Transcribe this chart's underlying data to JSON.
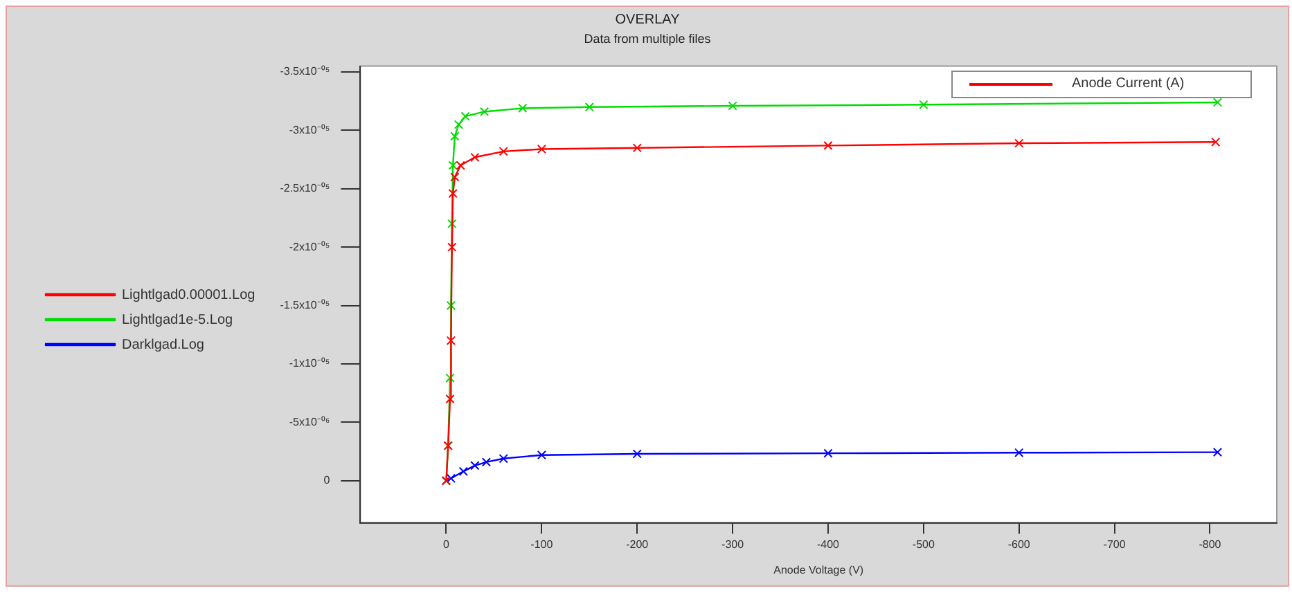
{
  "chart_data": {
    "type": "line",
    "title": "OVERLAY",
    "subtitle": "Data from multiple files",
    "xlabel": "Anode Voltage (V)",
    "ylabel": "Anode Current (A)",
    "xlim": [
      90,
      -870
    ],
    "xticks": [
      0,
      -100,
      -200,
      -300,
      -400,
      -500,
      -600,
      -700,
      -800
    ],
    "ylim": [
      3.6e-06,
      -3.55e-05
    ],
    "yticks": [
      {
        "value": -3.5e-05,
        "label": "-3.5x10⁻⁰⁵"
      },
      {
        "value": -3e-05,
        "label": "-3x10⁻⁰⁵"
      },
      {
        "value": -2.5e-05,
        "label": "-2.5x10⁻⁰⁵"
      },
      {
        "value": -2e-05,
        "label": "-2x10⁻⁰⁵"
      },
      {
        "value": -1.5e-05,
        "label": "-1.5x10⁻⁰⁵"
      },
      {
        "value": -1e-05,
        "label": "-1x10⁻⁰⁵"
      },
      {
        "value": -5e-06,
        "label": "-5x10⁻⁰⁶"
      },
      {
        "value": 0,
        "label": "0"
      }
    ],
    "grid": false,
    "legend": "left",
    "marker": "cross",
    "line_style": "solid",
    "series": [
      {
        "name": "Lightlgad0.00001.Log",
        "color": "#ff0000",
        "x": [
          0,
          -2,
          -4,
          -5,
          -6,
          -7,
          -9,
          -15,
          -30,
          -60,
          -100,
          -200,
          -400,
          -600,
          -806
        ],
        "values": [
          0,
          -3e-06,
          -7e-06,
          -1.2e-05,
          -2e-05,
          -2.46e-05,
          -2.6e-05,
          -2.7e-05,
          -2.77e-05,
          -2.82e-05,
          -2.84e-05,
          -2.85e-05,
          -2.87e-05,
          -2.89e-05,
          -2.9e-05
        ]
      },
      {
        "name": "Lightlgad1e-5.Log",
        "color": "#00dd00",
        "x": [
          0,
          -2,
          -4,
          -5,
          -6,
          -7,
          -9,
          -13,
          -20,
          -40,
          -80,
          -150,
          -300,
          -500,
          -808
        ],
        "values": [
          0,
          -3e-06,
          -8.8e-06,
          -1.5e-05,
          -2.2e-05,
          -2.7e-05,
          -2.95e-05,
          -3.05e-05,
          -3.12e-05,
          -3.16e-05,
          -3.19e-05,
          -3.2e-05,
          -3.21e-05,
          -3.22e-05,
          -3.24e-05
        ]
      },
      {
        "name": "Darklgad.Log",
        "color": "#0000ff",
        "x": [
          0,
          -5,
          -18,
          -30,
          -42,
          -60,
          -100,
          -200,
          -400,
          -600,
          -808
        ],
        "values": [
          0,
          -2e-07,
          -8e-07,
          -1.3e-06,
          -1.6e-06,
          -1.9e-06,
          -2.2e-06,
          -2.3e-06,
          -2.35e-06,
          -2.4e-06,
          -2.44e-06
        ]
      }
    ]
  }
}
